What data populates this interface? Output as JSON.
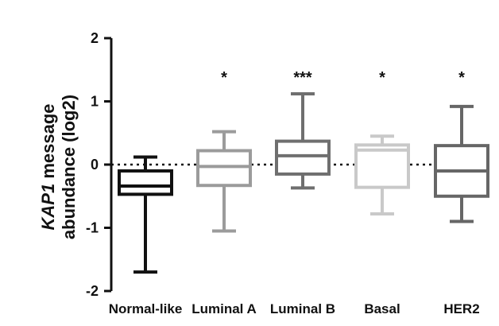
{
  "chart_data": {
    "type": "box",
    "ylabel_lines": [
      [
        {
          "text": "KAP1",
          "italic": true
        },
        {
          "text": " message",
          "italic": false
        }
      ],
      [
        {
          "text": "abundance (log2)",
          "italic": false
        }
      ]
    ],
    "ylim": [
      -2,
      2
    ],
    "yticks": [
      2,
      1,
      0,
      -1,
      -2
    ],
    "reference_line": {
      "y": 0,
      "style": "dotted"
    },
    "categories": [
      "Normal-like",
      "Luminal A",
      "Luminal B",
      "Basal",
      "HER2"
    ],
    "series": [
      {
        "category": "Normal-like",
        "whisker_low": -1.7,
        "q1": -0.47,
        "median": -0.34,
        "q3": -0.1,
        "whisker_high": 0.12,
        "significance": "",
        "color": "#111111"
      },
      {
        "category": "Luminal A",
        "whisker_low": -1.05,
        "q1": -0.33,
        "median": -0.03,
        "q3": 0.22,
        "whisker_high": 0.52,
        "significance": "*",
        "color": "#9b9b9b"
      },
      {
        "category": "Luminal B",
        "whisker_low": -0.37,
        "q1": -0.15,
        "median": 0.14,
        "q3": 0.37,
        "whisker_high": 1.12,
        "significance": "***",
        "color": "#6f6f6f"
      },
      {
        "category": "Basal",
        "whisker_low": -0.78,
        "q1": -0.36,
        "median": 0.23,
        "q3": 0.31,
        "whisker_high": 0.45,
        "significance": "*",
        "color": "#c9c9c9"
      },
      {
        "category": "HER2",
        "whisker_low": -0.9,
        "q1": -0.5,
        "median": -0.1,
        "q3": 0.3,
        "whisker_high": 0.92,
        "significance": "*",
        "color": "#666666"
      }
    ]
  }
}
